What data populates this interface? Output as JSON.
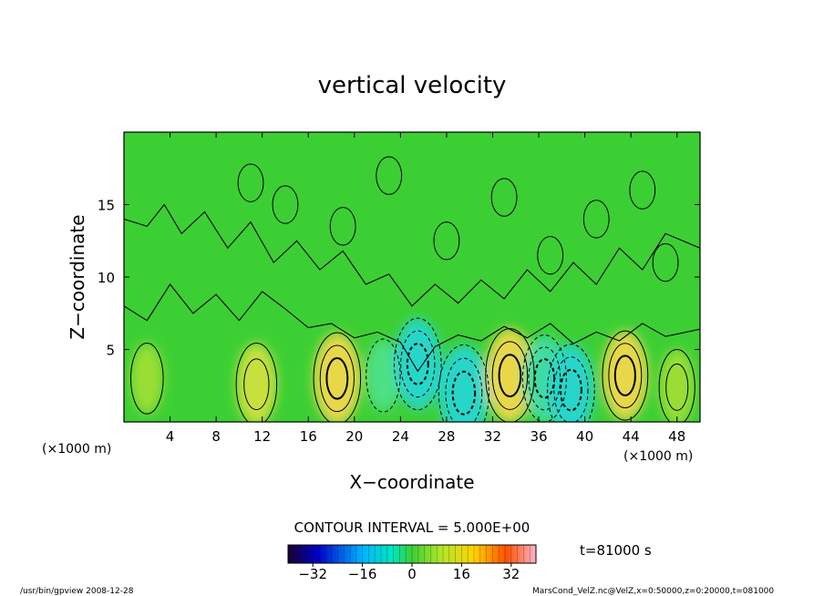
{
  "chart_data": {
    "type": "contour",
    "title": "vertical velocity",
    "xlabel": "X−coordinate",
    "ylabel": "Z−coordinate",
    "x_unit": "(×1000 m)",
    "y_unit": "(×1000 m)",
    "xlim": [
      0,
      50
    ],
    "ylim": [
      0,
      20
    ],
    "x_ticks": [
      "4",
      "8",
      "12",
      "16",
      "20",
      "24",
      "28",
      "32",
      "36",
      "40",
      "44",
      "48"
    ],
    "y_ticks": [
      "5",
      "10",
      "15"
    ],
    "contour_interval_text": "CONTOUR INTERVAL = 5.000E+00",
    "time_text": "t=81000 s",
    "colorbar": {
      "range": [
        -40,
        40
      ],
      "ticks": [
        "−32",
        "−16",
        "0",
        "16",
        "32"
      ],
      "colormap": "rainbow"
    },
    "features": [
      {
        "kind": "updraft",
        "x": 2.0,
        "z": 3.0,
        "value": 3
      },
      {
        "kind": "updraft",
        "x": 11.5,
        "z": 2.6,
        "value": 8
      },
      {
        "kind": "updraft",
        "x": 18.5,
        "z": 3.0,
        "value": 12
      },
      {
        "kind": "downdraft",
        "x": 22.5,
        "z": 3.2,
        "value": -4
      },
      {
        "kind": "downdraft",
        "x": 25.5,
        "z": 4.0,
        "value": -12
      },
      {
        "kind": "downdraft",
        "x": 29.5,
        "z": 2.0,
        "value": -14
      },
      {
        "kind": "updraft",
        "x": 33.5,
        "z": 3.2,
        "value": 13
      },
      {
        "kind": "downdraft",
        "x": 36.5,
        "z": 3.0,
        "value": -10
      },
      {
        "kind": "downdraft",
        "x": 38.8,
        "z": 2.2,
        "value": -12
      },
      {
        "kind": "updraft",
        "x": 43.5,
        "z": 3.2,
        "value": 11
      },
      {
        "kind": "updraft",
        "x": 48.0,
        "z": 2.4,
        "value": 5
      }
    ],
    "background_color": "#3ccf34"
  },
  "footer": {
    "left": "/usr/bin/gpview   2008-12-28",
    "right": "MarsCond_VelZ.nc@VelZ,x=0:50000,z=0:20000,t=081000"
  }
}
